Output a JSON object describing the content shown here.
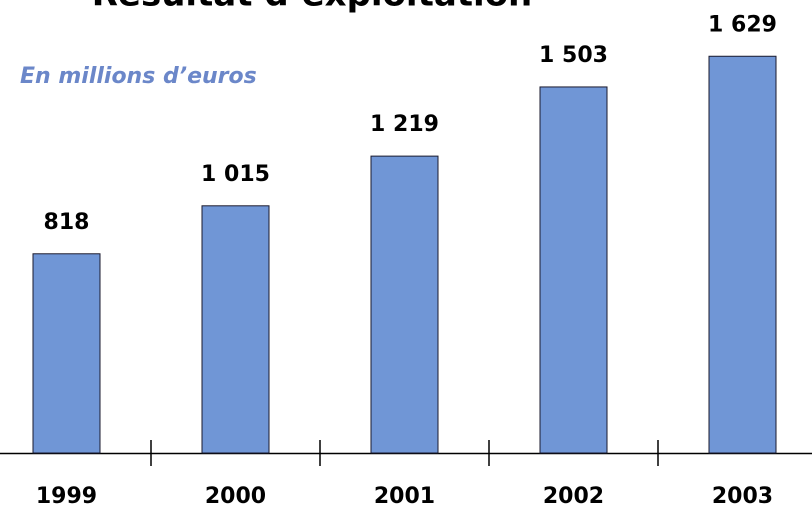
{
  "chart_data": {
    "type": "bar",
    "title": "Résultat d’exploitation",
    "subtitle": "En millions d’euros",
    "categories": [
      "1999",
      "2000",
      "2001",
      "2002",
      "2003"
    ],
    "values": [
      818,
      1015,
      1219,
      1503,
      1629
    ],
    "value_labels": [
      "818",
      "1 015",
      "1 219",
      "1 503",
      "1 629"
    ],
    "color": "#7096d6",
    "ylim": [
      0,
      1860
    ]
  }
}
